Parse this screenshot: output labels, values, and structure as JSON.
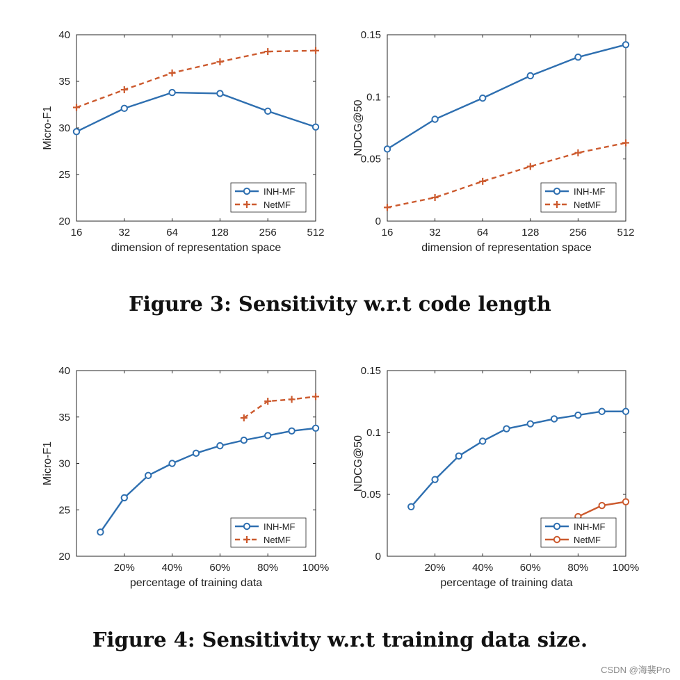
{
  "colors": {
    "inh": "#2e6fb0",
    "net": "#cc5a2e",
    "axis": "#262626"
  },
  "chart_data": [
    {
      "type": "line",
      "xscale": "log2",
      "categories": [
        "16",
        "32",
        "64",
        "128",
        "256",
        "512"
      ],
      "x": [
        16,
        32,
        64,
        128,
        256,
        512
      ],
      "xlim": [
        16,
        512
      ],
      "ylim": [
        20,
        40
      ],
      "yticks": [
        "20",
        "25",
        "30",
        "35",
        "40"
      ],
      "ytick_values": [
        20,
        25,
        30,
        35,
        40
      ],
      "xlabel": "dimension of representation space",
      "ylabel": "Micro-F1",
      "legend": "bottom-right",
      "series": [
        {
          "name": "INH-MF",
          "style": "solid-circle",
          "x": [
            16,
            32,
            64,
            128,
            256,
            512
          ],
          "values": [
            29.6,
            32.1,
            33.8,
            33.7,
            31.8,
            30.1
          ]
        },
        {
          "name": "NetMF",
          "style": "dashed-plus",
          "x": [
            16,
            32,
            64,
            128,
            256,
            512
          ],
          "values": [
            32.2,
            34.1,
            35.9,
            37.1,
            38.2,
            38.3
          ]
        }
      ]
    },
    {
      "type": "line",
      "xscale": "log2",
      "categories": [
        "16",
        "32",
        "64",
        "128",
        "256",
        "512"
      ],
      "x": [
        16,
        32,
        64,
        128,
        256,
        512
      ],
      "xlim": [
        16,
        512
      ],
      "ylim": [
        0,
        0.15
      ],
      "yticks": [
        "0",
        "0.05",
        "0.1",
        "0.15"
      ],
      "ytick_values": [
        0,
        0.05,
        0.1,
        0.15
      ],
      "xlabel": "dimension of representation space",
      "ylabel": "NDCG@50",
      "legend": "bottom-right",
      "series": [
        {
          "name": "INH-MF",
          "style": "solid-circle",
          "x": [
            16,
            32,
            64,
            128,
            256,
            512
          ],
          "values": [
            0.058,
            0.082,
            0.099,
            0.117,
            0.132,
            0.142
          ]
        },
        {
          "name": "NetMF",
          "style": "dashed-plus",
          "x": [
            16,
            32,
            64,
            128,
            256,
            512
          ],
          "values": [
            0.011,
            0.019,
            0.032,
            0.044,
            0.055,
            0.063
          ]
        }
      ]
    },
    {
      "type": "line",
      "xscale": "linear",
      "categories": [
        "20%",
        "40%",
        "60%",
        "80%",
        "100%"
      ],
      "x": [
        20,
        40,
        60,
        80,
        100
      ],
      "xlim": [
        0,
        100
      ],
      "ylim": [
        20,
        40
      ],
      "yticks": [
        "20",
        "25",
        "30",
        "35",
        "40"
      ],
      "ytick_values": [
        20,
        25,
        30,
        35,
        40
      ],
      "xlabel": "percentage of training data",
      "ylabel": "Micro-F1",
      "legend": "bottom-right",
      "series": [
        {
          "name": "INH-MF",
          "style": "solid-circle",
          "x": [
            10,
            20,
            30,
            40,
            50,
            60,
            70,
            80,
            90,
            100
          ],
          "values": [
            22.6,
            26.3,
            28.7,
            30.0,
            31.1,
            31.9,
            32.5,
            33.0,
            33.5,
            33.8
          ]
        },
        {
          "name": "NetMF",
          "style": "dashed-plus",
          "x": [
            70,
            80,
            90,
            100
          ],
          "values": [
            34.9,
            36.7,
            36.9,
            37.2
          ]
        }
      ]
    },
    {
      "type": "line",
      "xscale": "linear",
      "categories": [
        "20%",
        "40%",
        "60%",
        "80%",
        "100%"
      ],
      "x": [
        20,
        40,
        60,
        80,
        100
      ],
      "xlim": [
        0,
        100
      ],
      "ylim": [
        0,
        0.15
      ],
      "yticks": [
        "0",
        "0.05",
        "0.1",
        "0.15"
      ],
      "ytick_values": [
        0,
        0.05,
        0.1,
        0.15
      ],
      "xlabel": "percentage of training data",
      "ylabel": "NDCG@50",
      "legend": "bottom-right",
      "series": [
        {
          "name": "INH-MF",
          "style": "solid-circle",
          "x": [
            10,
            20,
            30,
            40,
            50,
            60,
            70,
            80,
            90,
            100
          ],
          "values": [
            0.04,
            0.062,
            0.081,
            0.093,
            0.103,
            0.107,
            0.111,
            0.114,
            0.117,
            0.117
          ]
        },
        {
          "name": "NetMF",
          "style": "solid-circle",
          "x": [
            80,
            90,
            100
          ],
          "values": [
            0.032,
            0.041,
            0.044
          ]
        }
      ]
    }
  ],
  "captions": {
    "fig3": "Figure 3: Sensitivity w.r.t code length",
    "fig4": "Figure 4: Sensitivity w.r.t training data size."
  },
  "watermark": "CSDN @海裴Pro"
}
